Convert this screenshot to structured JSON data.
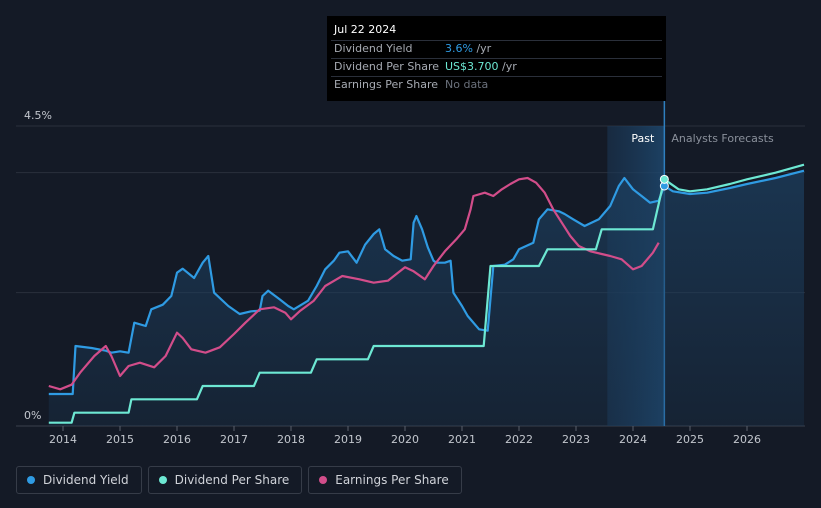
{
  "chart_data": {
    "type": "line",
    "x_ticks": [
      "2014",
      "2015",
      "2016",
      "2017",
      "2018",
      "2019",
      "2020",
      "2021",
      "2022",
      "2023",
      "2024",
      "2025",
      "2026"
    ],
    "y_ticks": [
      "0%",
      "4.5%"
    ],
    "region_labels": {
      "past": "Past",
      "forecast": "Analysts Forecasts"
    },
    "colors": {
      "dividend_yield": "#2f9be3",
      "dividend_per_share": "#6de8d3",
      "earnings_per_share": "#d24d8a",
      "background": "#141a26",
      "area_fill": "#1c3e5e"
    },
    "series": [
      {
        "name": "Dividend Yield",
        "key": "dividend_yield",
        "points": [
          [
            2013.75,
            0.48
          ],
          [
            2014.17,
            0.48
          ],
          [
            2014.22,
            1.2
          ],
          [
            2014.5,
            1.17
          ],
          [
            2014.75,
            1.13
          ],
          [
            2014.85,
            1.1
          ],
          [
            2015.0,
            1.12
          ],
          [
            2015.15,
            1.1
          ],
          [
            2015.25,
            1.55
          ],
          [
            2015.45,
            1.5
          ],
          [
            2015.55,
            1.75
          ],
          [
            2015.75,
            1.82
          ],
          [
            2015.9,
            1.95
          ],
          [
            2016.0,
            2.3
          ],
          [
            2016.1,
            2.36
          ],
          [
            2016.3,
            2.22
          ],
          [
            2016.45,
            2.45
          ],
          [
            2016.55,
            2.55
          ],
          [
            2016.65,
            2.0
          ],
          [
            2016.9,
            1.8
          ],
          [
            2017.1,
            1.68
          ],
          [
            2017.3,
            1.72
          ],
          [
            2017.45,
            1.73
          ],
          [
            2017.5,
            1.95
          ],
          [
            2017.6,
            2.03
          ],
          [
            2017.8,
            1.9
          ],
          [
            2017.95,
            1.8
          ],
          [
            2018.05,
            1.75
          ],
          [
            2018.3,
            1.88
          ],
          [
            2018.45,
            2.1
          ],
          [
            2018.6,
            2.35
          ],
          [
            2018.75,
            2.48
          ],
          [
            2018.85,
            2.6
          ],
          [
            2019.0,
            2.62
          ],
          [
            2019.15,
            2.45
          ],
          [
            2019.3,
            2.72
          ],
          [
            2019.45,
            2.88
          ],
          [
            2019.55,
            2.95
          ],
          [
            2019.65,
            2.65
          ],
          [
            2019.8,
            2.55
          ],
          [
            2019.95,
            2.48
          ],
          [
            2020.1,
            2.5
          ],
          [
            2020.15,
            3.05
          ],
          [
            2020.2,
            3.15
          ],
          [
            2020.3,
            2.95
          ],
          [
            2020.4,
            2.68
          ],
          [
            2020.5,
            2.48
          ],
          [
            2020.55,
            2.45
          ],
          [
            2020.7,
            2.45
          ],
          [
            2020.8,
            2.48
          ],
          [
            2020.85,
            2.0
          ],
          [
            2021.0,
            1.8
          ],
          [
            2021.1,
            1.65
          ],
          [
            2021.3,
            1.45
          ],
          [
            2021.45,
            1.43
          ],
          [
            2021.55,
            2.4
          ],
          [
            2021.75,
            2.42
          ],
          [
            2021.9,
            2.5
          ],
          [
            2022.0,
            2.65
          ],
          [
            2022.25,
            2.75
          ],
          [
            2022.35,
            3.1
          ],
          [
            2022.5,
            3.25
          ],
          [
            2022.7,
            3.22
          ],
          [
            2022.8,
            3.18
          ],
          [
            2022.95,
            3.1
          ],
          [
            2023.15,
            3.0
          ],
          [
            2023.4,
            3.1
          ],
          [
            2023.6,
            3.3
          ],
          [
            2023.75,
            3.6
          ],
          [
            2023.85,
            3.72
          ],
          [
            2024.0,
            3.55
          ],
          [
            2024.15,
            3.45
          ],
          [
            2024.3,
            3.35
          ],
          [
            2024.45,
            3.38
          ],
          [
            2024.55,
            3.6
          ],
          [
            2024.7,
            3.52
          ],
          [
            2025.0,
            3.48
          ],
          [
            2025.3,
            3.5
          ],
          [
            2025.7,
            3.57
          ],
          [
            2026.0,
            3.63
          ],
          [
            2026.5,
            3.72
          ],
          [
            2027.0,
            3.83
          ]
        ]
      },
      {
        "name": "Dividend Per Share",
        "key": "dividend_per_share",
        "points": [
          [
            2013.75,
            0.05
          ],
          [
            2014.15,
            0.05
          ],
          [
            2014.2,
            0.2
          ],
          [
            2015.15,
            0.2
          ],
          [
            2015.2,
            0.4
          ],
          [
            2016.35,
            0.4
          ],
          [
            2016.45,
            0.6
          ],
          [
            2017.35,
            0.6
          ],
          [
            2017.45,
            0.8
          ],
          [
            2018.35,
            0.8
          ],
          [
            2018.45,
            1.0
          ],
          [
            2019.35,
            1.0
          ],
          [
            2019.45,
            1.2
          ],
          [
            2021.38,
            1.2
          ],
          [
            2021.5,
            2.4
          ],
          [
            2022.35,
            2.4
          ],
          [
            2022.5,
            2.65
          ],
          [
            2023.35,
            2.65
          ],
          [
            2023.45,
            2.95
          ],
          [
            2024.35,
            2.95
          ],
          [
            2024.55,
            3.7
          ],
          [
            2024.8,
            3.55
          ],
          [
            2025.0,
            3.52
          ],
          [
            2025.3,
            3.55
          ],
          [
            2025.7,
            3.63
          ],
          [
            2026.0,
            3.7
          ],
          [
            2026.5,
            3.8
          ],
          [
            2027.0,
            3.92
          ]
        ]
      },
      {
        "name": "Earnings Per Share",
        "key": "earnings_per_share",
        "points": [
          [
            2013.75,
            0.6
          ],
          [
            2013.95,
            0.55
          ],
          [
            2014.15,
            0.62
          ],
          [
            2014.3,
            0.8
          ],
          [
            2014.55,
            1.05
          ],
          [
            2014.75,
            1.2
          ],
          [
            2014.85,
            1.05
          ],
          [
            2015.0,
            0.75
          ],
          [
            2015.15,
            0.9
          ],
          [
            2015.35,
            0.95
          ],
          [
            2015.6,
            0.88
          ],
          [
            2015.8,
            1.05
          ],
          [
            2016.0,
            1.4
          ],
          [
            2016.1,
            1.32
          ],
          [
            2016.25,
            1.15
          ],
          [
            2016.5,
            1.1
          ],
          [
            2016.75,
            1.18
          ],
          [
            2017.0,
            1.38
          ],
          [
            2017.2,
            1.55
          ],
          [
            2017.45,
            1.75
          ],
          [
            2017.7,
            1.78
          ],
          [
            2017.9,
            1.7
          ],
          [
            2018.0,
            1.6
          ],
          [
            2018.15,
            1.72
          ],
          [
            2018.4,
            1.88
          ],
          [
            2018.6,
            2.1
          ],
          [
            2018.8,
            2.2
          ],
          [
            2018.9,
            2.25
          ],
          [
            2019.2,
            2.2
          ],
          [
            2019.45,
            2.15
          ],
          [
            2019.7,
            2.18
          ],
          [
            2019.85,
            2.28
          ],
          [
            2020.0,
            2.38
          ],
          [
            2020.15,
            2.32
          ],
          [
            2020.35,
            2.2
          ],
          [
            2020.5,
            2.4
          ],
          [
            2020.7,
            2.62
          ],
          [
            2020.9,
            2.8
          ],
          [
            2021.05,
            2.95
          ],
          [
            2021.15,
            3.25
          ],
          [
            2021.2,
            3.45
          ],
          [
            2021.4,
            3.5
          ],
          [
            2021.55,
            3.45
          ],
          [
            2021.7,
            3.55
          ],
          [
            2021.85,
            3.63
          ],
          [
            2022.0,
            3.7
          ],
          [
            2022.15,
            3.72
          ],
          [
            2022.3,
            3.65
          ],
          [
            2022.45,
            3.5
          ],
          [
            2022.6,
            3.25
          ],
          [
            2022.75,
            3.05
          ],
          [
            2022.9,
            2.85
          ],
          [
            2023.05,
            2.7
          ],
          [
            2023.25,
            2.62
          ],
          [
            2023.45,
            2.58
          ],
          [
            2023.6,
            2.55
          ],
          [
            2023.8,
            2.5
          ],
          [
            2024.0,
            2.35
          ],
          [
            2024.15,
            2.4
          ],
          [
            2024.35,
            2.6
          ],
          [
            2024.45,
            2.75
          ]
        ]
      }
    ],
    "xlim": [
      2013.4,
      2027.0
    ],
    "ylim": [
      0,
      4.5
    ],
    "past_start": 2023.55,
    "past_end": 2024.55,
    "grid": true
  },
  "tooltip": {
    "date": "Jul 22 2024",
    "rows": [
      {
        "label": "Dividend Yield",
        "value": "3.6%",
        "unit": " /yr",
        "color": "#2f9be3"
      },
      {
        "label": "Dividend Per Share",
        "value": "US$3.700",
        "unit": " /yr",
        "color": "#6de8d3"
      },
      {
        "label": "Earnings Per Share",
        "value": "No data",
        "unit": "",
        "color": "#6b717c"
      }
    ]
  },
  "legend": [
    {
      "label": "Dividend Yield",
      "color": "#2f9be3"
    },
    {
      "label": "Dividend Per Share",
      "color": "#6de8d3"
    },
    {
      "label": "Earnings Per Share",
      "color": "#d24d8a"
    }
  ]
}
